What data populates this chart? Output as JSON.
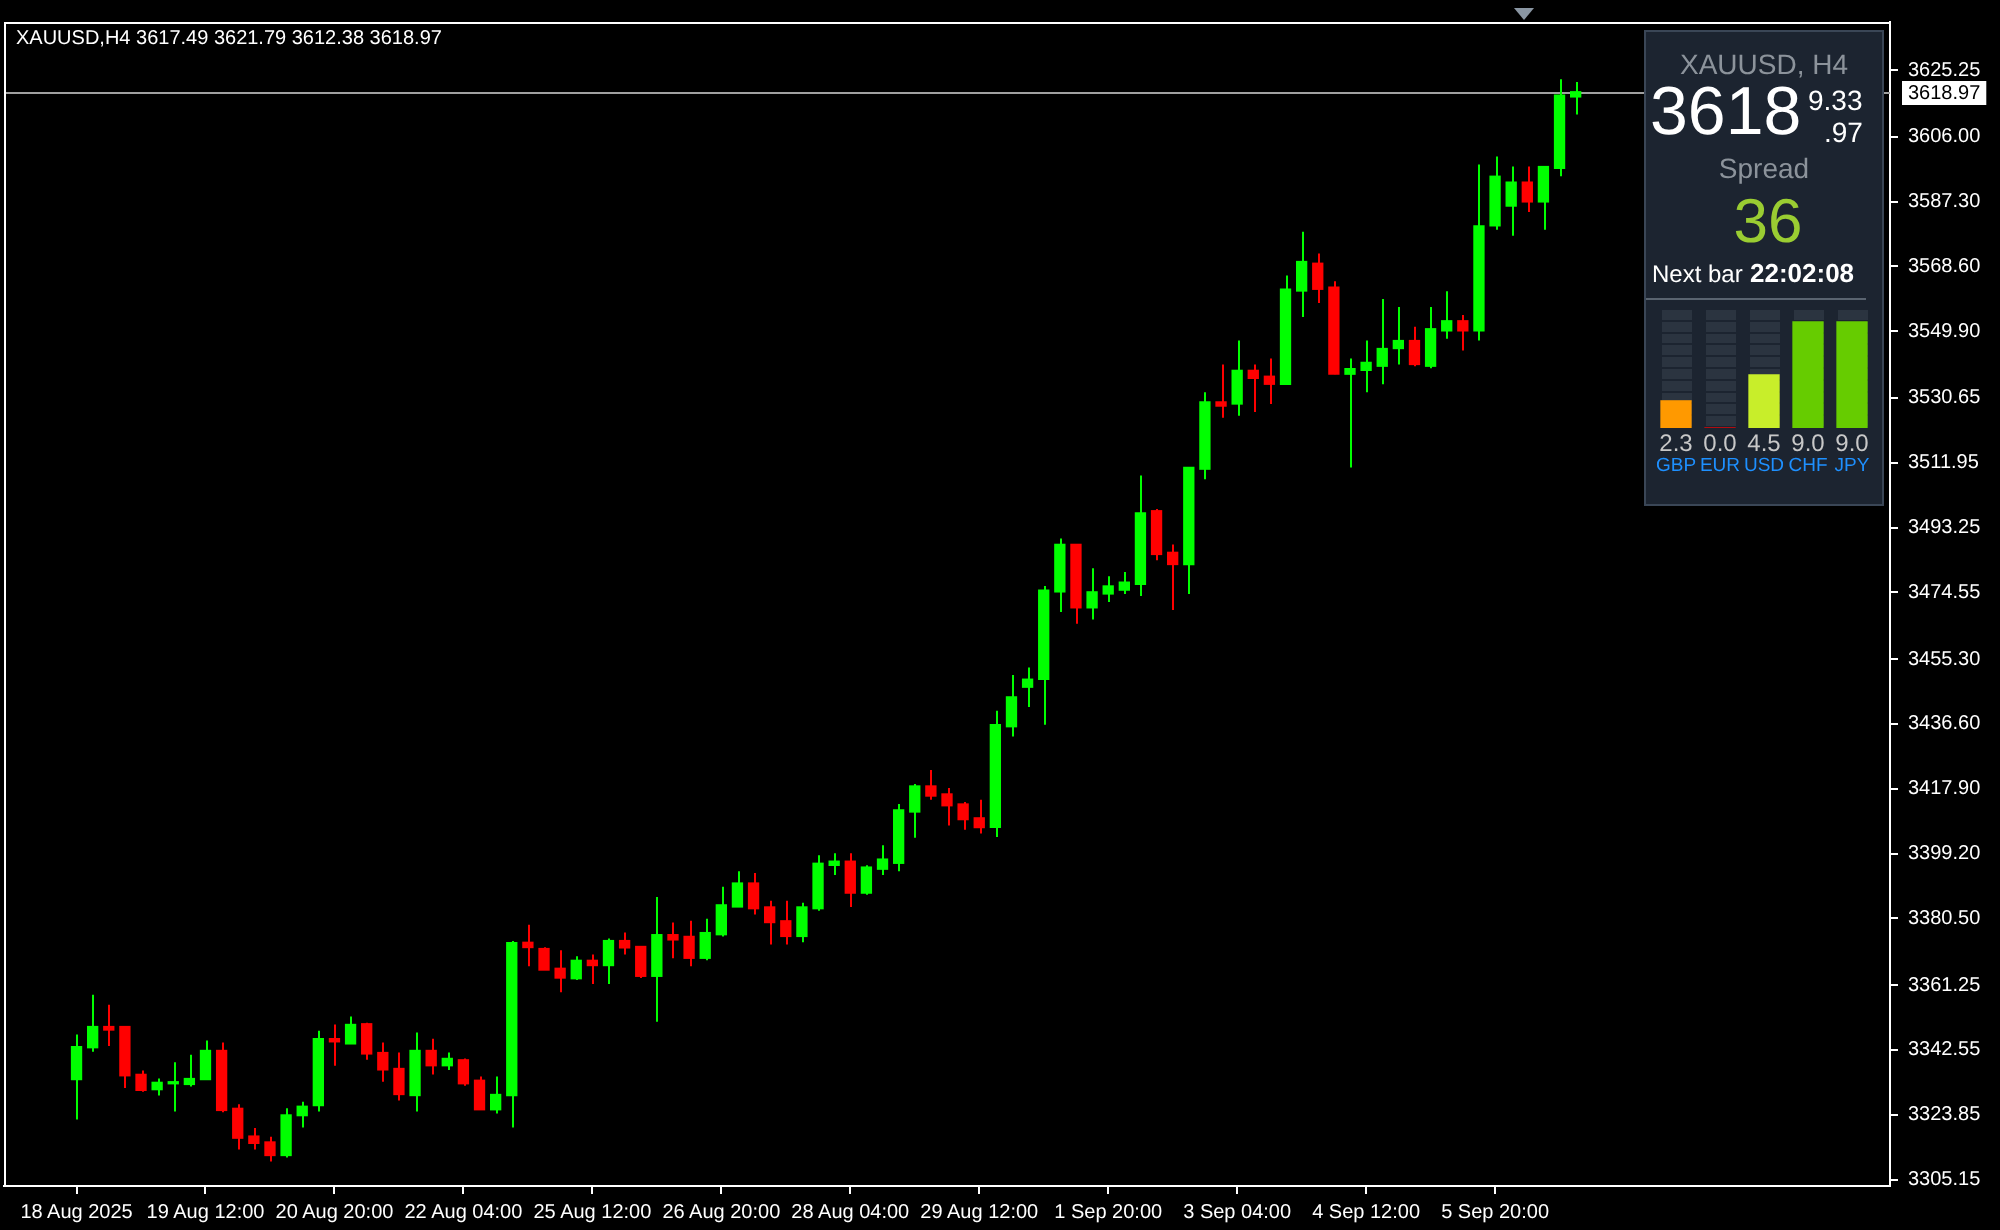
{
  "chart_data": [
    {
      "type": "candlestick",
      "title": "XAUUSD,H4 3617.49 3621.79 3612.38 3618.97",
      "categories": [
        null,
        null,
        null,
        null,
        "18 Aug 2025",
        null,
        null,
        null,
        null,
        null,
        null,
        null,
        "19 Aug 12:00",
        null,
        null,
        null,
        null,
        null,
        null,
        null,
        "20 Aug 20:00",
        null,
        null,
        null,
        null,
        null,
        null,
        null,
        "22 Aug 04:00",
        null,
        null,
        null,
        null,
        null,
        null,
        null,
        "25 Aug 12:00",
        null,
        null,
        null,
        null,
        null,
        null,
        null,
        "26 Aug 20:00",
        null,
        null,
        null,
        null,
        null,
        null,
        null,
        "28 Aug 04:00",
        null,
        null,
        null,
        null,
        null,
        null,
        null,
        "29 Aug 12:00",
        null,
        null,
        null,
        null,
        null,
        null,
        null,
        "1 Sep 20:00",
        null,
        null,
        null,
        null,
        null,
        null,
        null,
        "3 Sep 04:00",
        null,
        null,
        null,
        null,
        null,
        null,
        null,
        "4 Sep 12:00",
        null,
        null,
        null,
        null,
        null,
        null,
        null,
        "5 Sep 20:00",
        null,
        null,
        null,
        null,
        null,
        null,
        null,
        null,
        null,
        null,
        null,
        null,
        null,
        null,
        null,
        null,
        null,
        null,
        null,
        null,
        null,
        null,
        null,
        null
      ],
      "ohlc": [
        null,
        null,
        null,
        null,
        [
          3334.0,
          3347.0,
          3322.5,
          3343.5
        ],
        [
          3343.2,
          3358.5,
          3342.0,
          3349.3
        ],
        [
          3349.3,
          3355.6,
          3343.7,
          3348.3
        ],
        [
          3349.3,
          3349.3,
          3331.6,
          3335.1
        ],
        [
          3335.5,
          3336.6,
          3330.5,
          3330.9
        ],
        [
          3331.1,
          3334.3,
          3329.4,
          3333.2
        ],
        [
          3332.8,
          3339.0,
          3324.8,
          3333.2
        ],
        [
          3332.6,
          3341.2,
          3332.0,
          3334.3
        ],
        [
          3334.0,
          3345.3,
          3334.0,
          3342.4
        ],
        [
          3342.4,
          3344.7,
          3324.6,
          3325.1
        ],
        [
          3325.7,
          3326.9,
          3313.8,
          3317.1
        ],
        [
          3317.7,
          3320.0,
          3313.8,
          3315.6
        ],
        [
          3316.0,
          3317.5,
          3310.4,
          3312.1
        ],
        [
          3312.1,
          3325.7,
          3311.5,
          3323.8
        ],
        [
          3323.6,
          3327.6,
          3320.2,
          3326.3
        ],
        [
          3326.5,
          3348.1,
          3324.8,
          3345.8
        ],
        [
          3345.8,
          3349.9,
          3338.0,
          3344.9
        ],
        [
          3344.3,
          3352.2,
          3344.3,
          3349.9
        ],
        [
          3350.1,
          3350.4,
          3339.7,
          3341.4
        ],
        [
          3341.8,
          3344.7,
          3333.4,
          3336.8
        ],
        [
          3337.2,
          3341.8,
          3328.0,
          3329.7
        ],
        [
          3329.4,
          3347.6,
          3324.8,
          3342.4
        ],
        [
          3342.4,
          3345.8,
          3335.5,
          3338.0
        ],
        [
          3338.0,
          3341.8,
          3336.8,
          3340.1
        ],
        [
          3339.7,
          3340.1,
          3332.2,
          3332.8
        ],
        [
          3333.8,
          3334.9,
          3325.3,
          3325.3
        ],
        [
          3325.3,
          3334.9,
          3324.2,
          3329.7
        ],
        [
          3329.4,
          3374.0,
          3320.2,
          3373.5
        ],
        [
          3373.6,
          3378.7,
          3366.7,
          3372.1
        ],
        [
          3371.8,
          3372.2,
          3365.6,
          3365.6
        ],
        [
          3366.1,
          3371.3,
          3359.2,
          3363.3
        ],
        [
          3363.1,
          3369.6,
          3362.7,
          3368.4
        ],
        [
          3368.4,
          3370.1,
          3361.6,
          3366.9
        ],
        [
          3366.9,
          3374.7,
          3361.6,
          3374.1
        ],
        [
          3374.1,
          3376.4,
          3370.1,
          3372.0
        ],
        [
          3372.4,
          3372.4,
          3363.3,
          3363.8
        ],
        [
          3363.8,
          3386.7,
          3350.7,
          3375.8
        ],
        [
          3375.8,
          3379.3,
          3369.0,
          3374.3
        ],
        [
          3375.3,
          3379.8,
          3366.7,
          3369.0
        ],
        [
          3369.0,
          3380.4,
          3368.4,
          3376.4
        ],
        [
          3375.8,
          3389.6,
          3375.3,
          3384.4
        ],
        [
          3383.8,
          3394.1,
          3383.8,
          3390.7
        ],
        [
          3390.7,
          3393.6,
          3381.6,
          3383.3
        ],
        [
          3383.8,
          3385.6,
          3373.0,
          3379.3
        ],
        [
          3379.8,
          3385.6,
          3373.0,
          3375.3
        ],
        [
          3375.3,
          3385.0,
          3373.6,
          3383.8
        ],
        [
          3383.3,
          3398.7,
          3382.7,
          3396.4
        ],
        [
          3395.8,
          3399.3,
          3393.0,
          3397.0
        ],
        [
          3397.0,
          3399.3,
          3383.8,
          3387.8
        ],
        [
          3387.8,
          3395.8,
          3387.3,
          3395.3
        ],
        [
          3394.7,
          3401.6,
          3393.0,
          3397.6
        ],
        [
          3396.4,
          3413.5,
          3394.1,
          3411.8
        ],
        [
          3411.2,
          3419.3,
          3403.8,
          3418.7
        ],
        [
          3418.7,
          3423.3,
          3414.7,
          3415.8
        ],
        [
          3416.4,
          3418.1,
          3407.3,
          3413.0
        ],
        [
          3413.5,
          3414.1,
          3406.1,
          3409.0
        ],
        [
          3409.5,
          3414.7,
          3405.0,
          3406.7
        ],
        [
          3406.8,
          3440.4,
          3404.0,
          3436.4
        ],
        [
          3435.8,
          3450.7,
          3433.0,
          3444.4
        ],
        [
          3447.2,
          3452.9,
          3441.5,
          3449.5
        ],
        [
          3449.5,
          3476.4,
          3436.4,
          3475.2
        ],
        [
          3474.7,
          3490.1,
          3468.9,
          3488.4
        ],
        [
          3488.4,
          3488.4,
          3465.5,
          3470.1
        ],
        [
          3470.1,
          3481.5,
          3466.7,
          3474.7
        ],
        [
          3474.1,
          3479.2,
          3471.8,
          3476.4
        ],
        [
          3475.2,
          3480.4,
          3474.1,
          3477.5
        ],
        [
          3476.9,
          3508.3,
          3473.5,
          3497.5
        ],
        [
          3498.1,
          3498.6,
          3483.8,
          3485.5
        ],
        [
          3486.1,
          3488.4,
          3469.5,
          3482.6
        ],
        [
          3482.6,
          3510.6,
          3474.1,
          3510.6
        ],
        [
          3510.1,
          3532.3,
          3507.2,
          3529.5
        ],
        [
          3529.5,
          3540.3,
          3524.9,
          3528.3
        ],
        [
          3528.9,
          3547.2,
          3525.5,
          3538.6
        ],
        [
          3538.6,
          3540.3,
          3526.6,
          3536.3
        ],
        [
          3536.9,
          3542.0,
          3528.9,
          3534.6
        ],
        [
          3534.6,
          3566.0,
          3534.6,
          3562.0
        ],
        [
          3561.5,
          3578.6,
          3554.0,
          3570.0
        ],
        [
          3569.5,
          3572.3,
          3558.0,
          3562.0
        ],
        [
          3562.6,
          3564.3,
          3537.5,
          3537.5
        ],
        [
          3537.5,
          3542.0,
          3510.6,
          3539.1
        ],
        [
          3538.6,
          3547.2,
          3532.3,
          3540.9
        ],
        [
          3539.8,
          3559.2,
          3534.6,
          3544.9
        ],
        [
          3544.9,
          3556.9,
          3540.3,
          3547.2
        ],
        [
          3547.2,
          3551.2,
          3539.8,
          3540.3
        ],
        [
          3539.8,
          3556.9,
          3539.2,
          3550.6
        ],
        [
          3550.0,
          3561.4,
          3547.7,
          3552.9
        ],
        [
          3552.9,
          3554.6,
          3544.3,
          3550.0
        ],
        [
          3550.0,
          3598.0,
          3547.2,
          3580.3
        ],
        [
          3580.3,
          3600.3,
          3579.2,
          3594.6
        ],
        [
          3586.0,
          3597.4,
          3577.4,
          3592.9
        ],
        [
          3592.9,
          3597.4,
          3584.3,
          3587.2
        ],
        [
          3587.2,
          3597.4,
          3579.2,
          3597.4
        ],
        [
          3596.9,
          3622.6,
          3594.6,
          3618.0
        ],
        [
          3617.49,
          3621.79,
          3612.38,
          3618.97
        ],
        null,
        null,
        null,
        null,
        null,
        null,
        null,
        null,
        null,
        null,
        null,
        null,
        null,
        null,
        null,
        null,
        null,
        null,
        null
      ],
      "colors": [
        null,
        null,
        null,
        null,
        "#00ff00",
        "#00ff00",
        "#ff0000",
        "#ff0000",
        "#ff0000",
        "#00ff00",
        "#00ff00",
        "#00ff00",
        "#00ff00",
        "#ff0000",
        "#ff0000",
        "#ff0000",
        "#ff0000",
        "#00ff00",
        "#00ff00",
        "#00ff00",
        "#ff0000",
        "#00ff00",
        "#ff0000",
        "#ff0000",
        "#ff0000",
        "#00ff00",
        "#ff0000",
        "#00ff00",
        "#ff0000",
        "#ff0000",
        "#00ff00",
        "#00ff00",
        "#ff0000",
        "#ff0000",
        "#ff0000",
        "#00ff00",
        "#ff0000",
        "#00ff00",
        "#ff0000",
        "#ff0000",
        "#00ff00",
        "#ff0000",
        "#ff0000",
        "#00ff00",
        "#00ff00",
        "#00ff00",
        "#ff0000",
        "#ff0000",
        "#ff0000",
        "#00ff00",
        "#00ff00",
        "#00ff00",
        "#ff0000",
        "#00ff00",
        "#00ff00",
        "#00ff00",
        "#00ff00",
        "#ff0000",
        "#ff0000",
        "#ff0000",
        "#ff0000",
        "#00ff00",
        "#00ff00",
        "#00ff00",
        "#00ff00",
        "#00ff00",
        "#ff0000",
        "#00ff00",
        "#00ff00",
        "#00ff00",
        "#00ff00",
        "#ff0000",
        "#ff0000",
        "#00ff00",
        "#00ff00",
        "#ff0000",
        "#00ff00",
        "#ff0000",
        "#ff0000",
        "#00ff00",
        "#00ff00",
        "#ff0000",
        "#ff0000",
        "#00ff00",
        "#00ff00",
        "#00ff00",
        "#00ff00",
        "#ff0000",
        "#00ff00",
        "#00ff00",
        "#ff0000",
        "#00ff00",
        "#00ff00",
        "#00ff00",
        "#ff0000",
        "#00ff00",
        "#00ff00",
        "#00ff00",
        null,
        null,
        null,
        null,
        null,
        null,
        null,
        null,
        null,
        null,
        null,
        null,
        null,
        null,
        null,
        null,
        null,
        null,
        null
      ],
      "ylim": [
        3303.3,
        3639.1
      ],
      "yticks": [
        {
          "value": 3625.25,
          "label": "3625.25"
        },
        {
          "value": 3606,
          "label": "3606.00"
        },
        {
          "value": 3587.3,
          "label": "3587.30"
        },
        {
          "value": 3568.6,
          "label": "3568.60"
        },
        {
          "value": 3549.9,
          "label": "3549.90"
        },
        {
          "value": 3530.65,
          "label": "3530.65"
        },
        {
          "value": 3511.95,
          "label": "3511.95"
        },
        {
          "value": 3493.25,
          "label": "3493.25"
        },
        {
          "value": 3474.55,
          "label": "3474.55"
        },
        {
          "value": 3455.3,
          "label": "3455.30"
        },
        {
          "value": 3436.6,
          "label": "3436.60"
        },
        {
          "value": 3417.9,
          "label": "3417.90"
        },
        {
          "value": 3399.2,
          "label": "3399.20"
        },
        {
          "value": 3380.5,
          "label": "3380.50"
        },
        {
          "value": 3361.25,
          "label": "3361.25"
        },
        {
          "value": 3342.55,
          "label": "3342.55"
        },
        {
          "value": 3323.85,
          "label": "3323.85"
        },
        {
          "value": 3305.15,
          "label": "3305.15"
        }
      ],
      "ref_lines": [
        {
          "axis": "y",
          "value": 3618.97,
          "label": "3618.97",
          "color": "#a0a0a0"
        }
      ]
    },
    {
      "type": "bar",
      "title": "XAUUSD, H4",
      "categories": [
        "GBP",
        "EUR",
        "USD",
        "CHF",
        "JPY"
      ],
      "values": [
        2.3,
        0.0,
        4.5,
        9.0,
        9.0
      ],
      "colors": [
        "#ff9900",
        "#ff0000",
        "#c8ee2a",
        "#66cc00",
        "#66cc00"
      ],
      "value_labels": [
        "2.3",
        "0.0",
        "4.5",
        "9.0",
        "9.0"
      ],
      "ylim": [
        0,
        10
      ],
      "tick_labels": "x",
      "annotations": [
        "3618",
        "9.33",
        ".97",
        "Spread",
        "36",
        "Next bar",
        "22:02:08"
      ]
    }
  ]
}
